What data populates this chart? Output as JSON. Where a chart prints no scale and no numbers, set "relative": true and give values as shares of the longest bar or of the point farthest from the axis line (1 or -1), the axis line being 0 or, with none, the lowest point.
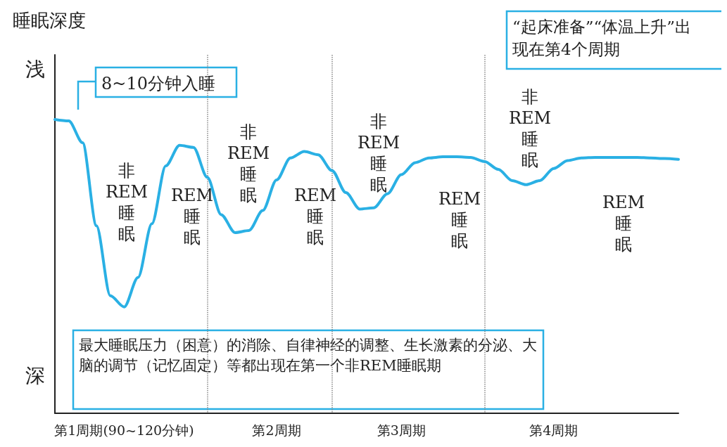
{
  "chart_data": {
    "type": "line",
    "relative": true,
    "ylabel": "睡眠深度",
    "categories": [
      null,
      null,
      null,
      null,
      null,
      "第1周期(90~120分钟)",
      null,
      null,
      null,
      null,
      null,
      null,
      null,
      null,
      null,
      null,
      "第2周期",
      null,
      null,
      null,
      null,
      null,
      null,
      null,
      null,
      "第3周期",
      null,
      null,
      null,
      null,
      null,
      null,
      null,
      null,
      null,
      null,
      "第4周期",
      null,
      null,
      null,
      null,
      null,
      null,
      null,
      null,
      null
    ],
    "series": [
      {
        "color": "#2ab0e4",
        "values": [
          1.0,
          0.995,
          0.921,
          0.638,
          0.4,
          0.362,
          0.462,
          0.645,
          0.842,
          0.912,
          0.905,
          0.803,
          0.676,
          0.615,
          0.622,
          0.69,
          0.794,
          0.869,
          0.891,
          0.88,
          0.826,
          0.751,
          0.695,
          0.699,
          0.747,
          0.812,
          0.853,
          0.869,
          0.873,
          0.873,
          0.871,
          0.857,
          0.83,
          0.792,
          0.778,
          0.792,
          0.833,
          0.86,
          0.869,
          0.871,
          0.871,
          0.871,
          0.871,
          0.869,
          0.867,
          0.864
        ]
      }
    ],
    "annotations": [
      "浅",
      "深",
      "8~10分钟入睡",
      "“起床准备”“体温上升”出现在第4个周期",
      "最大睡眠压力（困意）的消除、自律神经的调整、生长激素的分泌、大脑的调节（记忆固定）等都出现在第一个非REM睡眠期",
      "非REM睡眠",
      "非REM睡眠",
      "非REM睡眠",
      "非REM睡眠",
      "REM睡眠",
      "REM睡眠",
      "REM睡眠",
      "REM睡眠"
    ],
    "grid": "x",
    "marker": "none",
    "line_style": "solid"
  }
}
